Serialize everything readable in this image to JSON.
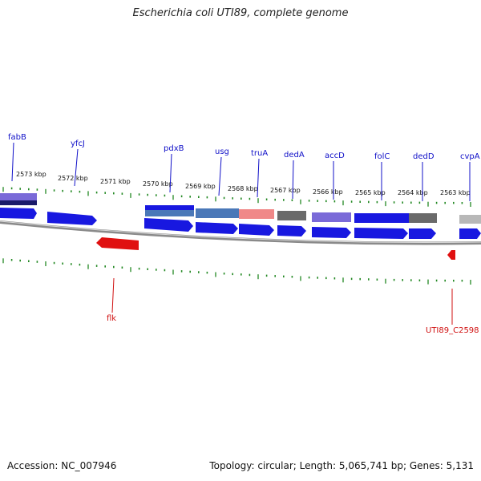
{
  "title": "Escherichia coli UTI89, complete genome",
  "accession": "Accession: NC_007946",
  "summary": "Topology: circular; Length: 5,065,741 bp; Genes: 5,131",
  "colors": {
    "forward_gene": "#1818e0",
    "reverse_gene": "#e01010",
    "feature_gray": "#6a6a6a",
    "feature_purple": "#7a6ad8",
    "feature_steel": "#4a78b8",
    "feature_pink": "#f08888",
    "feature_lightgray": "#b8b8b8",
    "backbone": "#8a8a8a",
    "tick": "#228822",
    "forward_label": "#1010c8",
    "reverse_label": "#d01010"
  },
  "ruler_labels": [
    "2573 kbp",
    "2572 kbp",
    "2571 kbp",
    "2570 kbp",
    "2569 kbp",
    "2568 kbp",
    "2567 kbp",
    "2566 kbp",
    "2565 kbp",
    "2564 kbp",
    "2563 kbp"
  ],
  "forward_gene_labels": [
    "fabB",
    "yfcJ",
    "pdxB",
    "usg",
    "truA",
    "dedA",
    "accD",
    "folC",
    "dedD",
    "cvpA"
  ],
  "reverse_gene_labels": [
    "flk",
    "UTI89_C2598"
  ]
}
